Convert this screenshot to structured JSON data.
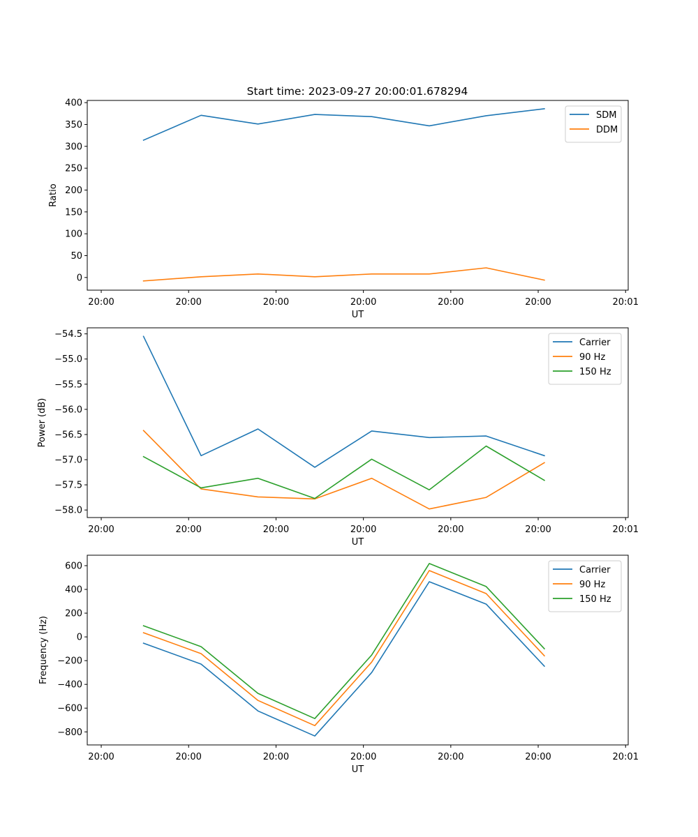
{
  "figure_title": "Start time: 2023-09-27 20:00:01.678294",
  "chart_data": [
    {
      "type": "line",
      "title": "Start time: 2023-09-27 20:00:01.678294",
      "xlabel": "UT",
      "ylabel": "Ratio",
      "x_unit": "seconds after 20:00:00",
      "xlim": [
        -1.6,
        60.3
      ],
      "ylim": [
        -29,
        405
      ],
      "x_ticks": [
        0,
        10,
        20,
        30,
        40,
        50,
        60
      ],
      "x_tick_labels": [
        "20:00",
        "20:00",
        "20:00",
        "20:00",
        "20:00",
        "20:00",
        "20:01"
      ],
      "y_ticks": [
        0,
        50,
        100,
        150,
        200,
        250,
        300,
        350,
        400
      ],
      "y_tick_labels": [
        "0",
        "50",
        "100",
        "150",
        "200",
        "250",
        "300",
        "350",
        "400"
      ],
      "legend_position": "top-right",
      "grid": false,
      "x": [
        4.84,
        11.43,
        17.94,
        24.44,
        30.95,
        37.54,
        44.05,
        50.71
      ],
      "series": [
        {
          "name": "SDM",
          "color": "#1f77b4",
          "values": [
            314,
            371,
            351,
            373,
            368,
            347,
            370,
            386
          ]
        },
        {
          "name": "DDM",
          "color": "#ff7f0e",
          "values": [
            -8,
            1.6,
            8,
            1.6,
            8,
            8,
            22,
            -6
          ]
        }
      ]
    },
    {
      "type": "line",
      "title": "",
      "xlabel": "UT",
      "ylabel": "Power (dB)",
      "x_unit": "seconds after 20:00:00",
      "xlim": [
        -1.6,
        60.3
      ],
      "ylim": [
        -58.15,
        -54.38
      ],
      "x_ticks": [
        0,
        10,
        20,
        30,
        40,
        50,
        60
      ],
      "x_tick_labels": [
        "20:00",
        "20:00",
        "20:00",
        "20:00",
        "20:00",
        "20:00",
        "20:01"
      ],
      "y_ticks": [
        -58.0,
        -57.5,
        -57.0,
        -56.5,
        -56.0,
        -55.5,
        -55.0,
        -54.5
      ],
      "y_tick_labels": [
        "−58.0",
        "−57.5",
        "−57.0",
        "−56.5",
        "−56.0",
        "−55.5",
        "−55.0",
        "−54.5"
      ],
      "legend_position": "top-right",
      "grid": false,
      "x": [
        4.84,
        11.43,
        17.94,
        24.44,
        30.95,
        37.54,
        44.05,
        50.71
      ],
      "series": [
        {
          "name": "Carrier",
          "color": "#1f77b4",
          "values": [
            -54.55,
            -56.92,
            -56.39,
            -57.15,
            -56.43,
            -56.56,
            -56.53,
            -56.92
          ]
        },
        {
          "name": "90 Hz",
          "color": "#ff7f0e",
          "values": [
            -56.42,
            -57.58,
            -57.74,
            -57.78,
            -57.37,
            -57.98,
            -57.75,
            -57.06
          ]
        },
        {
          "name": "150 Hz",
          "color": "#2ca02c",
          "values": [
            -56.94,
            -57.56,
            -57.37,
            -57.77,
            -56.99,
            -57.6,
            -56.73,
            -57.41
          ]
        }
      ]
    },
    {
      "type": "line",
      "title": "",
      "xlabel": "UT",
      "ylabel": "Frequency (Hz)",
      "x_unit": "seconds after 20:00:00",
      "xlim": [
        -1.6,
        60.3
      ],
      "ylim": [
        -910,
        688
      ],
      "x_ticks": [
        0,
        10,
        20,
        30,
        40,
        50,
        60
      ],
      "x_tick_labels": [
        "20:00",
        "20:00",
        "20:00",
        "20:00",
        "20:00",
        "20:00",
        "20:01"
      ],
      "y_ticks": [
        -800,
        -600,
        -400,
        -200,
        0,
        200,
        400,
        600
      ],
      "y_tick_labels": [
        "−800",
        "−600",
        "−400",
        "−200",
        "0",
        "200",
        "400",
        "600"
      ],
      "legend_position": "top-right",
      "grid": false,
      "x": [
        4.84,
        11.43,
        17.94,
        24.44,
        30.95,
        37.54,
        44.05,
        50.71
      ],
      "series": [
        {
          "name": "Carrier",
          "color": "#1f77b4",
          "values": [
            -53,
            -229,
            -624,
            -835,
            -300,
            465,
            276,
            -247
          ]
        },
        {
          "name": "90 Hz",
          "color": "#ff7f0e",
          "values": [
            35,
            -141,
            -535,
            -747,
            -212,
            559,
            365,
            -159
          ]
        },
        {
          "name": "150 Hz",
          "color": "#2ca02c",
          "values": [
            94,
            -82,
            -476,
            -688,
            -153,
            618,
            424,
            -100
          ]
        }
      ]
    }
  ]
}
